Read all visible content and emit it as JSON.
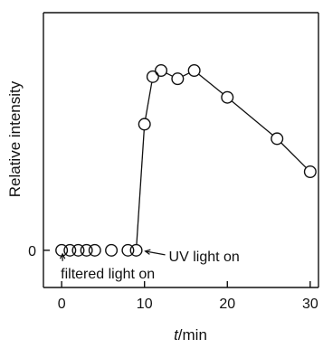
{
  "chart_data": {
    "type": "line",
    "xlabel_italic": "t",
    "xlabel_unit": "/min",
    "ylabel": "Relative intensity",
    "xlim": [
      -2.2,
      31
    ],
    "ylim": [
      -0.18,
      1.15
    ],
    "x_ticks": [
      0,
      10,
      20,
      30
    ],
    "x_tick_labels": [
      "0",
      "10",
      "20",
      "30"
    ],
    "y_ticks": [
      0
    ],
    "y_tick_labels": [
      "0"
    ],
    "marker": "open-circle",
    "baseline_points": {
      "x": [
        0,
        1,
        2,
        3,
        4,
        6,
        8,
        9
      ],
      "y": [
        0,
        0,
        0,
        0,
        0,
        0,
        0,
        0
      ]
    },
    "series": [
      {
        "x": [
          9,
          10,
          11,
          12,
          14,
          16,
          20,
          26,
          30
        ],
        "y": [
          0,
          0.61,
          0.84,
          0.87,
          0.83,
          0.87,
          0.74,
          0.54,
          0.38
        ]
      }
    ],
    "annotations": [
      {
        "text": "UV light on",
        "x": 9,
        "y": 0
      },
      {
        "text": "filtered light on",
        "x": 0,
        "y": 0
      }
    ]
  }
}
